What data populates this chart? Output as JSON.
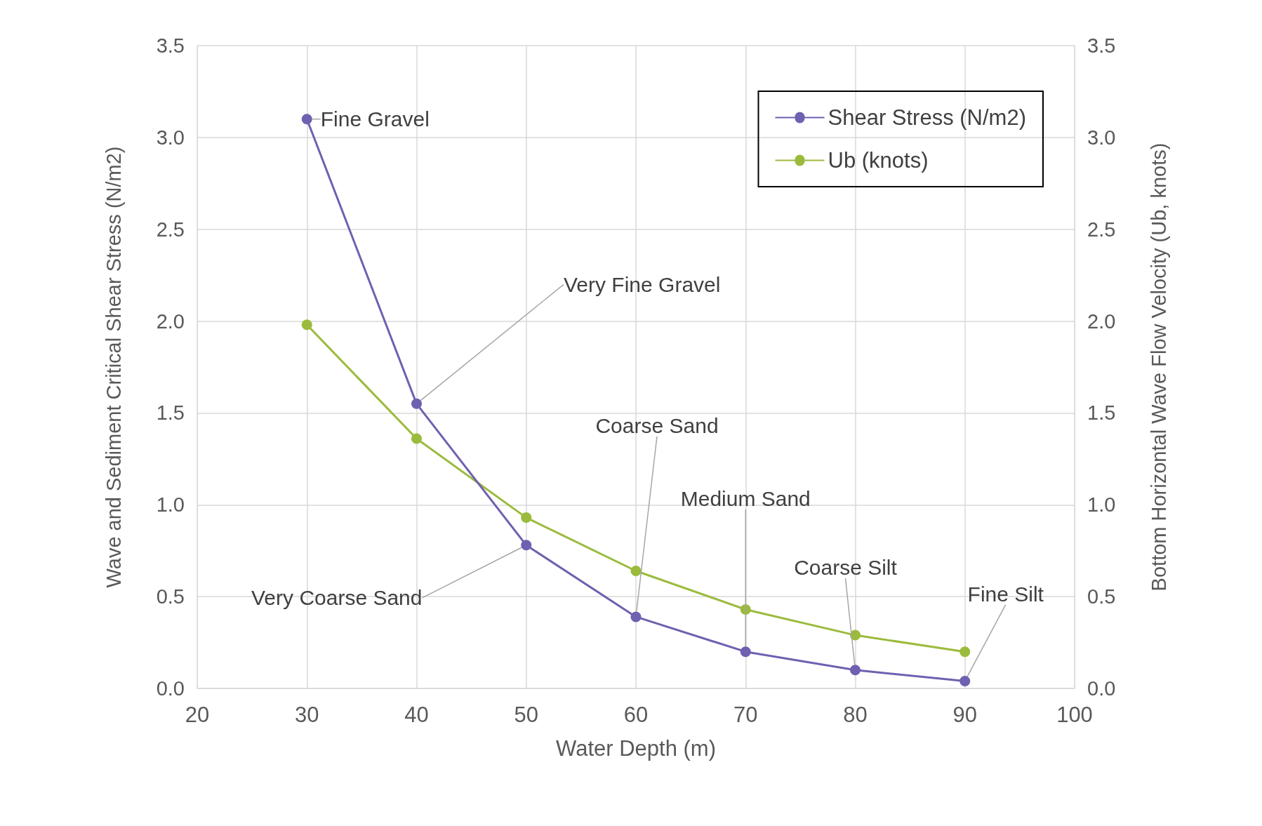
{
  "chart_data": {
    "type": "line",
    "xlabel": "Water Depth (m)",
    "ylabel": "Wave and Sediment Critical Shear Stress (N/m2)",
    "y2label": "Bottom Horizontal Wave Flow Velocity (Ub, knots)",
    "x": [
      30,
      40,
      50,
      60,
      70,
      80,
      90
    ],
    "series": [
      {
        "name": "Shear Stress (N/m2)",
        "color": "#7060b0",
        "values": [
          3.1,
          1.55,
          0.78,
          0.39,
          0.2,
          0.1,
          0.04
        ]
      },
      {
        "name": "Ub (knots)",
        "color": "#9bbb3c",
        "axis": "y2",
        "values": [
          1.98,
          1.36,
          0.93,
          0.64,
          0.43,
          0.29,
          0.2
        ]
      }
    ],
    "xlim": [
      20,
      100
    ],
    "xticks": [
      20,
      30,
      40,
      50,
      60,
      70,
      80,
      90,
      100
    ],
    "ylim": [
      0,
      3.5
    ],
    "yticks": [
      {
        "value": 0,
        "label": "0.0"
      },
      0.5,
      {
        "value": 1,
        "label": "1.0"
      },
      1.5,
      {
        "value": 2,
        "label": "2.0"
      },
      2.5,
      {
        "value": 3,
        "label": "3.0"
      },
      3.5
    ],
    "y2lim": [
      0,
      3.5
    ],
    "y2ticks": [
      {
        "value": 0,
        "label": "0.0"
      },
      0.5,
      {
        "value": 1,
        "label": "1.0"
      },
      1.5,
      {
        "value": 2,
        "label": "2.0"
      },
      2.5,
      {
        "value": 3,
        "label": "3.0"
      },
      3.5
    ],
    "annotations": [
      {
        "text": "Fine Gravel",
        "x": 30,
        "y": 3.1
      },
      {
        "text": "Very Fine Gravel",
        "x": 40,
        "y": 1.55
      },
      {
        "text": "Very Coarse Sand",
        "x": 50,
        "y": 0.78
      },
      {
        "text": "Coarse Sand",
        "x": 60,
        "y": 0.39
      },
      {
        "text": "Medium Sand",
        "x": 70,
        "y": 0.2
      },
      {
        "text": "Coarse Silt",
        "x": 80,
        "y": 0.1
      },
      {
        "text": "Fine Silt",
        "x": 90,
        "y": 0.04
      }
    ],
    "grid": true,
    "legend": "top right",
    "marker": "circle",
    "line_style": "solid"
  }
}
